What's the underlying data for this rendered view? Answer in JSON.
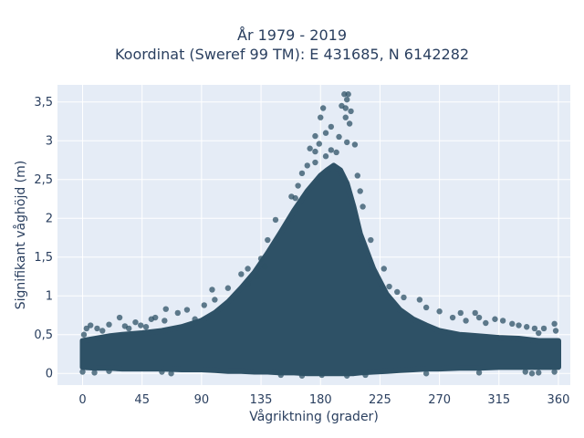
{
  "title_line1": "År 1979 - 2019",
  "title_line2": "Koordinat (Sweref 99 TM): E 431685, N 6142282",
  "colors": {
    "marker": "#2e5166",
    "plot_bg": "#e5ecf6",
    "grid": "#ffffff",
    "text": "#2a3f5f"
  },
  "chart_data": {
    "type": "scatter",
    "title": "År 1979 - 2019\nKoordinat (Sweref 99 TM): E 431685, N 6142282",
    "xlabel": "Vågriktning (grader)",
    "ylabel": "Signifikant våghöjd (m)",
    "xlim": [
      -19,
      369
    ],
    "ylim": [
      -0.15,
      3.72
    ],
    "xticks": [
      0,
      45,
      90,
      135,
      180,
      225,
      270,
      315,
      360
    ],
    "xtick_labels": [
      "0",
      "45",
      "90",
      "135",
      "180",
      "225",
      "270",
      "315",
      "360"
    ],
    "yticks": [
      0,
      0.5,
      1,
      1.5,
      2,
      2.5,
      3,
      3.5
    ],
    "ytick_labels": [
      "0",
      "0,5",
      "1",
      "1,5",
      "2",
      "2,5",
      "3",
      "3,5"
    ],
    "grid": true,
    "legend": "none",
    "envelope": {
      "x": [
        0,
        10,
        20,
        30,
        45,
        60,
        75,
        90,
        100,
        110,
        120,
        130,
        140,
        150,
        160,
        170,
        180,
        185,
        190,
        195,
        200,
        205,
        210,
        220,
        230,
        240,
        250,
        260,
        270,
        285,
        300,
        315,
        330,
        345,
        360
      ],
      "upper": [
        0.42,
        0.45,
        0.48,
        0.5,
        0.52,
        0.55,
        0.6,
        0.68,
        0.78,
        0.92,
        1.1,
        1.3,
        1.55,
        1.82,
        2.1,
        2.35,
        2.55,
        2.62,
        2.68,
        2.62,
        2.45,
        2.15,
        1.8,
        1.35,
        1.02,
        0.82,
        0.7,
        0.62,
        0.55,
        0.5,
        0.48,
        0.46,
        0.45,
        0.42,
        0.42
      ],
      "lower": [
        0.08,
        0.07,
        0.07,
        0.06,
        0.06,
        0.06,
        0.05,
        0.05,
        0.04,
        0.03,
        0.03,
        0.02,
        0.02,
        0.01,
        0.01,
        0.0,
        0.0,
        0.0,
        0.0,
        0.0,
        0.0,
        0.0,
        0.01,
        0.02,
        0.03,
        0.04,
        0.05,
        0.06,
        0.06,
        0.07,
        0.07,
        0.08,
        0.08,
        0.08,
        0.08
      ]
    },
    "points": [
      {
        "x": 198,
        "y": 3.6
      },
      {
        "x": 201,
        "y": 3.6
      },
      {
        "x": 200,
        "y": 3.53
      },
      {
        "x": 196,
        "y": 3.45
      },
      {
        "x": 199,
        "y": 3.42
      },
      {
        "x": 203,
        "y": 3.38
      },
      {
        "x": 182,
        "y": 3.42
      },
      {
        "x": 180,
        "y": 3.3
      },
      {
        "x": 199,
        "y": 3.3
      },
      {
        "x": 202,
        "y": 3.22
      },
      {
        "x": 188,
        "y": 3.18
      },
      {
        "x": 184,
        "y": 3.1
      },
      {
        "x": 176,
        "y": 3.06
      },
      {
        "x": 194,
        "y": 3.05
      },
      {
        "x": 200,
        "y": 2.98
      },
      {
        "x": 179,
        "y": 2.96
      },
      {
        "x": 206,
        "y": 2.95
      },
      {
        "x": 172,
        "y": 2.9
      },
      {
        "x": 176,
        "y": 2.86
      },
      {
        "x": 188,
        "y": 2.88
      },
      {
        "x": 192,
        "y": 2.85
      },
      {
        "x": 184,
        "y": 2.8
      },
      {
        "x": 176,
        "y": 2.72
      },
      {
        "x": 170,
        "y": 2.68
      },
      {
        "x": 166,
        "y": 2.58
      },
      {
        "x": 208,
        "y": 2.55
      },
      {
        "x": 163,
        "y": 2.42
      },
      {
        "x": 210,
        "y": 2.35
      },
      {
        "x": 158,
        "y": 2.28
      },
      {
        "x": 161,
        "y": 2.26
      },
      {
        "x": 212,
        "y": 2.15
      },
      {
        "x": 146,
        "y": 1.98
      },
      {
        "x": 140,
        "y": 1.72
      },
      {
        "x": 218,
        "y": 1.72
      },
      {
        "x": 135,
        "y": 1.48
      },
      {
        "x": 138,
        "y": 1.38
      },
      {
        "x": 125,
        "y": 1.35
      },
      {
        "x": 228,
        "y": 1.35
      },
      {
        "x": 120,
        "y": 1.28
      },
      {
        "x": 132,
        "y": 1.25
      },
      {
        "x": 125,
        "y": 1.15
      },
      {
        "x": 232,
        "y": 1.12
      },
      {
        "x": 110,
        "y": 1.1
      },
      {
        "x": 238,
        "y": 1.05
      },
      {
        "x": 98,
        "y": 1.08
      },
      {
        "x": 243,
        "y": 0.98
      },
      {
        "x": 100,
        "y": 0.95
      },
      {
        "x": 255,
        "y": 0.95
      },
      {
        "x": 260,
        "y": 0.85
      },
      {
        "x": 92,
        "y": 0.88
      },
      {
        "x": 63,
        "y": 0.83
      },
      {
        "x": 79,
        "y": 0.82
      },
      {
        "x": 270,
        "y": 0.8
      },
      {
        "x": 286,
        "y": 0.78
      },
      {
        "x": 297,
        "y": 0.78
      },
      {
        "x": 72,
        "y": 0.78
      },
      {
        "x": 300,
        "y": 0.72
      },
      {
        "x": 28,
        "y": 0.72
      },
      {
        "x": 40,
        "y": 0.66
      },
      {
        "x": 55,
        "y": 0.72
      },
      {
        "x": 52,
        "y": 0.7
      },
      {
        "x": 20,
        "y": 0.63
      },
      {
        "x": 6,
        "y": 0.62
      },
      {
        "x": 3,
        "y": 0.58
      },
      {
        "x": 11,
        "y": 0.58
      },
      {
        "x": 32,
        "y": 0.61
      },
      {
        "x": 44,
        "y": 0.62
      },
      {
        "x": 305,
        "y": 0.65
      },
      {
        "x": 312,
        "y": 0.7
      },
      {
        "x": 318,
        "y": 0.68
      },
      {
        "x": 325,
        "y": 0.64
      },
      {
        "x": 330,
        "y": 0.62
      },
      {
        "x": 336,
        "y": 0.6
      },
      {
        "x": 342,
        "y": 0.58
      },
      {
        "x": 349,
        "y": 0.58
      },
      {
        "x": 357,
        "y": 0.64
      },
      {
        "x": 358,
        "y": 0.55
      },
      {
        "x": 1,
        "y": 0.5
      },
      {
        "x": 35,
        "y": 0.58
      },
      {
        "x": 62,
        "y": 0.68
      },
      {
        "x": 85,
        "y": 0.7
      },
      {
        "x": 280,
        "y": 0.72
      },
      {
        "x": 290,
        "y": 0.68
      },
      {
        "x": 345,
        "y": 0.52
      },
      {
        "x": 15,
        "y": 0.55
      },
      {
        "x": 48,
        "y": 0.6
      },
      {
        "x": 0,
        "y": 0.02
      },
      {
        "x": 9,
        "y": 0.01
      },
      {
        "x": 20,
        "y": 0.03
      },
      {
        "x": 60,
        "y": 0.02
      },
      {
        "x": 67,
        "y": 0.0
      },
      {
        "x": 150,
        "y": -0.02
      },
      {
        "x": 166,
        "y": -0.03
      },
      {
        "x": 181,
        "y": -0.02
      },
      {
        "x": 200,
        "y": -0.03
      },
      {
        "x": 214,
        "y": -0.02
      },
      {
        "x": 260,
        "y": 0.0
      },
      {
        "x": 300,
        "y": 0.01
      },
      {
        "x": 335,
        "y": 0.02
      },
      {
        "x": 345,
        "y": 0.01
      },
      {
        "x": 340,
        "y": 0.0
      },
      {
        "x": 357,
        "y": 0.02
      }
    ]
  }
}
